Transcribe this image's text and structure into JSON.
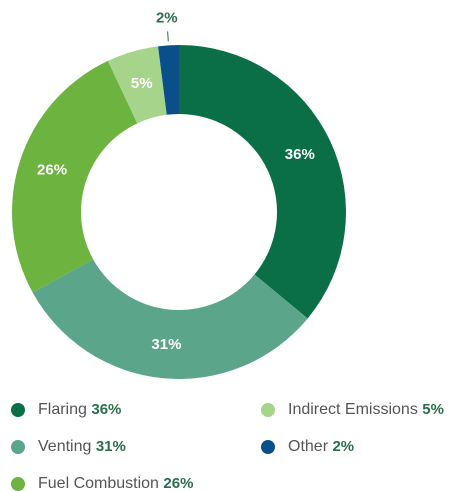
{
  "chart_data": {
    "type": "pie",
    "categories": [
      "Flaring",
      "Venting",
      "Fuel Combustion",
      "Indirect Emissions",
      "Other"
    ],
    "values": [
      36,
      31,
      26,
      5,
      2
    ],
    "value_labels": [
      "36%",
      "31%",
      "26%",
      "5%",
      "2%"
    ],
    "colors": [
      "#0a6e46",
      "#5ba58a",
      "#6db33f",
      "#a5d48a",
      "#0a4f8a"
    ]
  }
}
